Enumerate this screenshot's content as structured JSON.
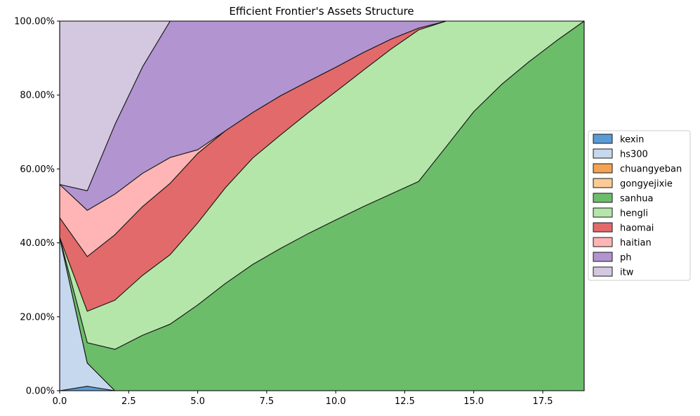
{
  "chart_data": {
    "type": "area",
    "stacked": true,
    "normalized": true,
    "title": "Efficient Frontier's Assets Structure",
    "xlabel": "",
    "ylabel": "",
    "xlim": [
      0,
      19
    ],
    "ylim": [
      0,
      100
    ],
    "xticks": [
      0,
      2.5,
      5,
      7.5,
      10,
      12.5,
      15,
      17.5
    ],
    "xtick_labels": [
      "0.0",
      "2.5",
      "5.0",
      "7.5",
      "10.0",
      "12.5",
      "15.0",
      "17.5"
    ],
    "yticks": [
      0,
      20,
      40,
      60,
      80,
      100
    ],
    "ytick_labels": [
      "0.00%",
      "20.00%",
      "40.00%",
      "60.00%",
      "80.00%",
      "100.00%"
    ],
    "grid": true,
    "legend_position": "right",
    "x": [
      0,
      1,
      2,
      3,
      4,
      5,
      6,
      7,
      8,
      9,
      10,
      11,
      12,
      13,
      14,
      15,
      16,
      17,
      18,
      19
    ],
    "series": [
      {
        "name": "kexin",
        "color": "#5b9bd5",
        "values": [
          0,
          1.2,
          0,
          0,
          0,
          0,
          0,
          0,
          0,
          0,
          0,
          0,
          0,
          0,
          0,
          0,
          0,
          0,
          0,
          0
        ]
      },
      {
        "name": "hs300",
        "color": "#c6d8ee",
        "values": [
          41.5,
          6.3,
          0,
          0,
          0,
          0,
          0,
          0,
          0,
          0,
          0,
          0,
          0,
          0,
          0,
          0,
          0,
          0,
          0,
          0
        ]
      },
      {
        "name": "chuangyeban",
        "color": "#f4a256",
        "values": [
          0,
          0,
          0,
          0,
          0,
          0,
          0,
          0,
          0,
          0,
          0,
          0,
          0,
          0,
          0,
          0,
          0,
          0,
          0,
          0
        ]
      },
      {
        "name": "gongyejixie",
        "color": "#fbcb96",
        "values": [
          0,
          0,
          0,
          0,
          0,
          0,
          0,
          0,
          0,
          0,
          0,
          0,
          0,
          0,
          0,
          0,
          0,
          0,
          0,
          0
        ]
      },
      {
        "name": "sanhua",
        "color": "#6cbd6a",
        "values": [
          0,
          5.5,
          11.2,
          15,
          18,
          23.2,
          29,
          34.2,
          38.5,
          42.5,
          46.2,
          49.8,
          53.2,
          56.6,
          66,
          75.5,
          82.8,
          89,
          94.7,
          100
        ]
      },
      {
        "name": "hengli",
        "color": "#b5e6a9",
        "values": [
          0,
          8.5,
          13.3,
          16.2,
          18.8,
          22.2,
          25.9,
          28.8,
          30.7,
          32.7,
          34.7,
          36.9,
          39.2,
          41,
          34,
          24.5,
          17.2,
          11,
          5.3,
          0
        ]
      },
      {
        "name": "haomai",
        "color": "#e26a6a",
        "values": [
          5.3,
          14.8,
          17.7,
          18.6,
          19.3,
          18.8,
          15.4,
          12.3,
          10.6,
          8.5,
          6.6,
          4.8,
          2.7,
          0.5,
          0,
          0,
          0,
          0,
          0,
          0
        ]
      },
      {
        "name": "haitian",
        "color": "#ffb5b5",
        "values": [
          9,
          12.5,
          11,
          9,
          7,
          1,
          0,
          0,
          0,
          0,
          0,
          0,
          0,
          0,
          0,
          0,
          0,
          0,
          0,
          0
        ]
      },
      {
        "name": "ph",
        "color": "#b294d0",
        "values": [
          0,
          5.3,
          18.8,
          28.8,
          36.9,
          34.8,
          29.7,
          24.7,
          20.2,
          16.3,
          12.5,
          8.5,
          4.9,
          1.9,
          0,
          0,
          0,
          0,
          0,
          0
        ]
      },
      {
        "name": "itw",
        "color": "#d4c8e0",
        "values": [
          44.2,
          45.9,
          28,
          12.4,
          0,
          0,
          0,
          0,
          0,
          0,
          0,
          0,
          0,
          0,
          0,
          0,
          0,
          0,
          0,
          0
        ]
      }
    ]
  }
}
